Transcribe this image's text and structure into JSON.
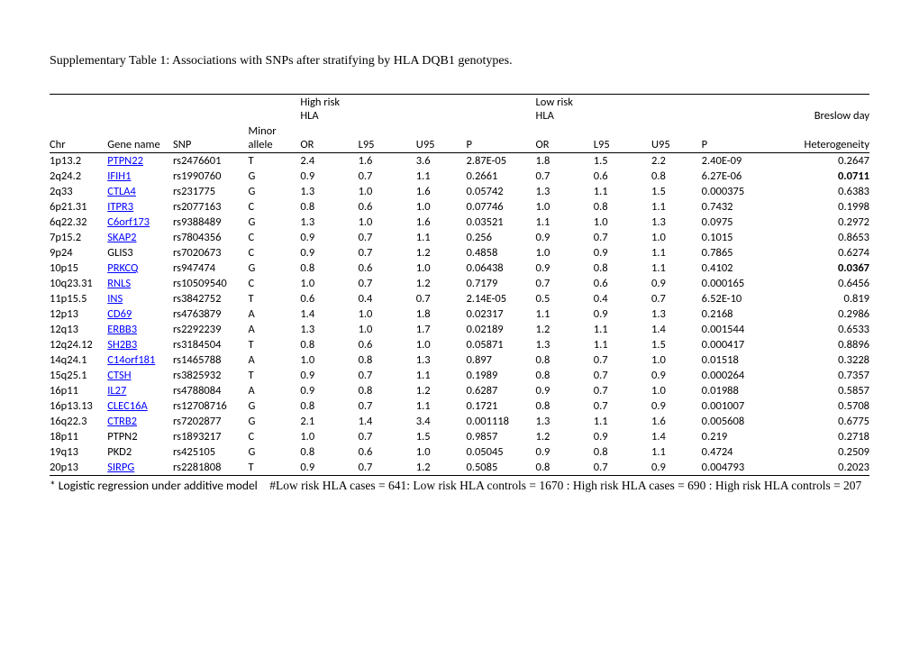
{
  "title": "Supplementary Table 1: Associations with SNPs after stratifying by HLA DQB1 genotypes.",
  "header": {
    "group1": "High risk HLA",
    "group2": "Low risk HLA",
    "breslow": "Breslow day",
    "chr": "Chr",
    "gene": "Gene name",
    "snp": "SNP",
    "allele": "Minor allele",
    "or": "OR",
    "l95": "L95",
    "u95": "U95",
    "p": "P",
    "het": "Heterogeneity"
  },
  "gene_links": [
    "PTPN22",
    "IFIH1",
    "CTLA4",
    "ITPR3",
    "C6orf173",
    "SKAP2",
    "PRKCQ",
    "RNLS",
    "INS",
    "CD69",
    "ERBB3",
    "SH2B3",
    "C14orf181",
    "CTSH",
    "IL27",
    "CLEC16A",
    "CTRB2",
    "SIRPG"
  ],
  "bold_het_rows": [
    1,
    7
  ],
  "rows": [
    {
      "chr": "1p13.2",
      "gene": "PTPN22",
      "snp": "rs2476601",
      "allele": "T",
      "or1": "2.4",
      "l951": "1.6",
      "u951": "3.6",
      "p1": "2.87E-05",
      "or2": "1.8",
      "l952": "1.5",
      "u952": "2.2",
      "p2": "2.40E-09",
      "het": "0.2647"
    },
    {
      "chr": "2q24.2",
      "gene": "IFIH1",
      "snp": "rs1990760",
      "allele": "G",
      "or1": "0.9",
      "l951": "0.7",
      "u951": "1.1",
      "p1": "0.2661",
      "or2": "0.7",
      "l952": "0.6",
      "u952": "0.8",
      "p2": "6.27E-06",
      "het": "0.0711"
    },
    {
      "chr": "2q33",
      "gene": "CTLA4",
      "snp": "rs231775",
      "allele": "G",
      "or1": "1.3",
      "l951": "1.0",
      "u951": "1.6",
      "p1": "0.05742",
      "or2": "1.3",
      "l952": "1.1",
      "u952": "1.5",
      "p2": "0.000375",
      "het": "0.6383"
    },
    {
      "chr": "6p21.31",
      "gene": "ITPR3",
      "snp": "rs2077163",
      "allele": "C",
      "or1": "0.8",
      "l951": "0.6",
      "u951": "1.0",
      "p1": "0.07746",
      "or2": "1.0",
      "l952": "0.8",
      "u952": "1.1",
      "p2": "0.7432",
      "het": "0.1998"
    },
    {
      "chr": "6q22.32",
      "gene": "C6orf173",
      "snp": "rs9388489",
      "allele": "G",
      "or1": "1.3",
      "l951": "1.0",
      "u951": "1.6",
      "p1": "0.03521",
      "or2": "1.1",
      "l952": "1.0",
      "u952": "1.3",
      "p2": "0.0975",
      "het": "0.2972"
    },
    {
      "chr": "7p15.2",
      "gene": "SKAP2",
      "snp": "rs7804356",
      "allele": "C",
      "or1": "0.9",
      "l951": "0.7",
      "u951": "1.1",
      "p1": "0.256",
      "or2": "0.9",
      "l952": "0.7",
      "u952": "1.0",
      "p2": "0.1015",
      "het": "0.8653"
    },
    {
      "chr": "9p24",
      "gene": "GLIS3",
      "snp": "rs7020673",
      "allele": "C",
      "or1": "0.9",
      "l951": "0.7",
      "u951": "1.2",
      "p1": "0.4858",
      "or2": "1.0",
      "l952": "0.9",
      "u952": "1.1",
      "p2": "0.7865",
      "het": "0.6274"
    },
    {
      "chr": "10p15",
      "gene": "PRKCQ",
      "snp": "rs947474",
      "allele": "G",
      "or1": "0.8",
      "l951": "0.6",
      "u951": "1.0",
      "p1": "0.06438",
      "or2": "0.9",
      "l952": "0.8",
      "u952": "1.1",
      "p2": "0.4102",
      "het": "0.0367"
    },
    {
      "chr": "10q23.31",
      "gene": "RNLS",
      "snp": "rs10509540",
      "allele": "C",
      "or1": "1.0",
      "l951": "0.7",
      "u951": "1.2",
      "p1": "0.7179",
      "or2": "0.7",
      "l952": "0.6",
      "u952": "0.9",
      "p2": "0.000165",
      "het": "0.6456"
    },
    {
      "chr": "11p15.5",
      "gene": "INS",
      "snp": "rs3842752",
      "allele": "T",
      "or1": "0.6",
      "l951": "0.4",
      "u951": "0.7",
      "p1": "2.14E-05",
      "or2": "0.5",
      "l952": "0.4",
      "u952": "0.7",
      "p2": "6.52E-10",
      "het": "0.819"
    },
    {
      "chr": "12p13",
      "gene": "CD69",
      "snp": "rs4763879",
      "allele": "A",
      "or1": "1.4",
      "l951": "1.0",
      "u951": "1.8",
      "p1": "0.02317",
      "or2": "1.1",
      "l952": "0.9",
      "u952": "1.3",
      "p2": "0.2168",
      "het": "0.2986"
    },
    {
      "chr": "12q13",
      "gene": "ERBB3",
      "snp": "rs2292239",
      "allele": "A",
      "or1": "1.3",
      "l951": "1.0",
      "u951": "1.7",
      "p1": "0.02189",
      "or2": "1.2",
      "l952": "1.1",
      "u952": "1.4",
      "p2": "0.001544",
      "het": "0.6533"
    },
    {
      "chr": "12q24.12",
      "gene": "SH2B3",
      "snp": "rs3184504",
      "allele": "T",
      "or1": "0.8",
      "l951": "0.6",
      "u951": "1.0",
      "p1": "0.05871",
      "or2": "1.3",
      "l952": "1.1",
      "u952": "1.5",
      "p2": "0.000417",
      "het": "0.8896"
    },
    {
      "chr": "14q24.1",
      "gene": "C14orf181",
      "snp": "rs1465788",
      "allele": "A",
      "or1": "1.0",
      "l951": "0.8",
      "u951": "1.3",
      "p1": "0.897",
      "or2": "0.8",
      "l952": "0.7",
      "u952": "1.0",
      "p2": "0.01518",
      "het": "0.3228"
    },
    {
      "chr": "15q25.1",
      "gene": "CTSH",
      "snp": "rs3825932",
      "allele": "T",
      "or1": "0.9",
      "l951": "0.7",
      "u951": "1.1",
      "p1": "0.1989",
      "or2": "0.8",
      "l952": "0.7",
      "u952": "0.9",
      "p2": "0.000264",
      "het": "0.7357"
    },
    {
      "chr": "16p11",
      "gene": "IL27",
      "snp": "rs4788084",
      "allele": "A",
      "or1": "0.9",
      "l951": "0.8",
      "u951": "1.2",
      "p1": "0.6287",
      "or2": "0.9",
      "l952": "0.7",
      "u952": "1.0",
      "p2": "0.01988",
      "het": "0.5857"
    },
    {
      "chr": "16p13.13",
      "gene": "CLEC16A",
      "snp": "rs12708716",
      "allele": "G",
      "or1": "0.8",
      "l951": "0.7",
      "u951": "1.1",
      "p1": "0.1721",
      "or2": "0.8",
      "l952": "0.7",
      "u952": "0.9",
      "p2": "0.001007",
      "het": "0.5708"
    },
    {
      "chr": "16q22.3",
      "gene": "CTRB2",
      "snp": "rs7202877",
      "allele": "G",
      "or1": "2.1",
      "l951": "1.4",
      "u951": "3.4",
      "p1": "0.001118",
      "or2": "1.3",
      "l952": "1.1",
      "u952": "1.6",
      "p2": "0.005608",
      "het": "0.6775"
    },
    {
      "chr": "18p11",
      "gene": "PTPN2",
      "snp": "rs1893217",
      "allele": "C",
      "or1": "1.0",
      "l951": "0.7",
      "u951": "1.5",
      "p1": "0.9857",
      "or2": "1.2",
      "l952": "0.9",
      "u952": "1.4",
      "p2": "0.219",
      "het": "0.2718"
    },
    {
      "chr": "19q13",
      "gene": "PKD2",
      "snp": "rs425105",
      "allele": "G",
      "or1": "0.8",
      "l951": "0.6",
      "u951": "1.0",
      "p1": "0.05045",
      "or2": "0.9",
      "l952": "0.8",
      "u952": "1.1",
      "p2": "0.4724",
      "het": "0.2509"
    },
    {
      "chr": "20p13",
      "gene": "SIRPG",
      "snp": "rs2281808",
      "allele": "T",
      "or1": "0.9",
      "l951": "0.7",
      "u951": "1.2",
      "p1": "0.5085",
      "or2": "0.8",
      "l952": "0.7",
      "u952": "0.9",
      "p2": "0.004793",
      "het": "0.2023"
    }
  ],
  "footnote_star": "* Logistic regression under additive model",
  "footnote_hash": "#Low risk HLA cases = 641:  Low risk HLA controls = 1670 : High risk HLA cases = 690 : High risk HLA controls = 207"
}
